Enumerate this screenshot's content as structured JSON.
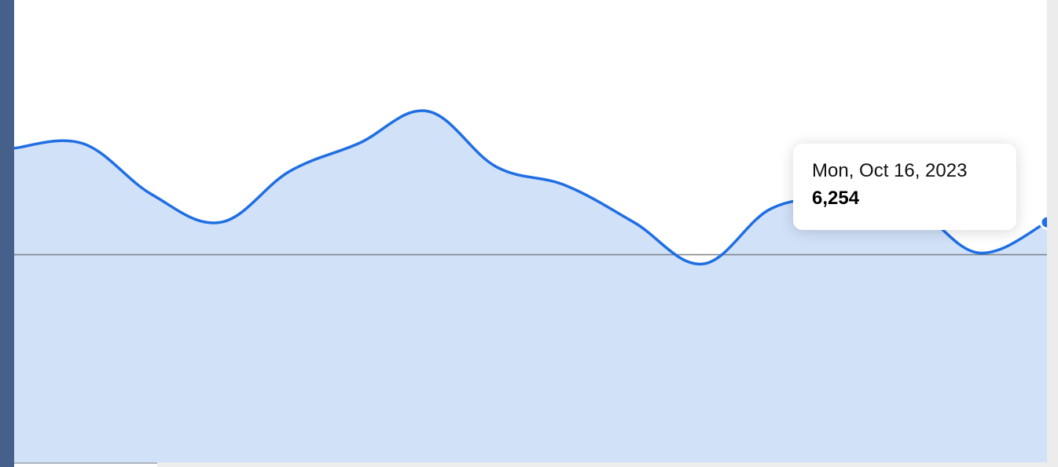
{
  "chart_data": {
    "type": "area",
    "title": "",
    "xlabel": "",
    "ylabel": "",
    "series": [
      {
        "values": [
          6480,
          6490,
          6380,
          6320,
          6430,
          6490,
          6560,
          6440,
          6400,
          6320,
          6230,
          6350,
          6370,
          6360,
          6254,
          6320
        ]
      }
    ],
    "ylim": [
      5800,
      6800
    ],
    "reference_line": 6250,
    "grid": false,
    "colors": {
      "line": "#1f6fe3",
      "fill": "#d1e1f8",
      "reference": "#7a8188"
    }
  },
  "tooltip": {
    "date": "Mon, Oct 16, 2023",
    "value": "6,254"
  }
}
